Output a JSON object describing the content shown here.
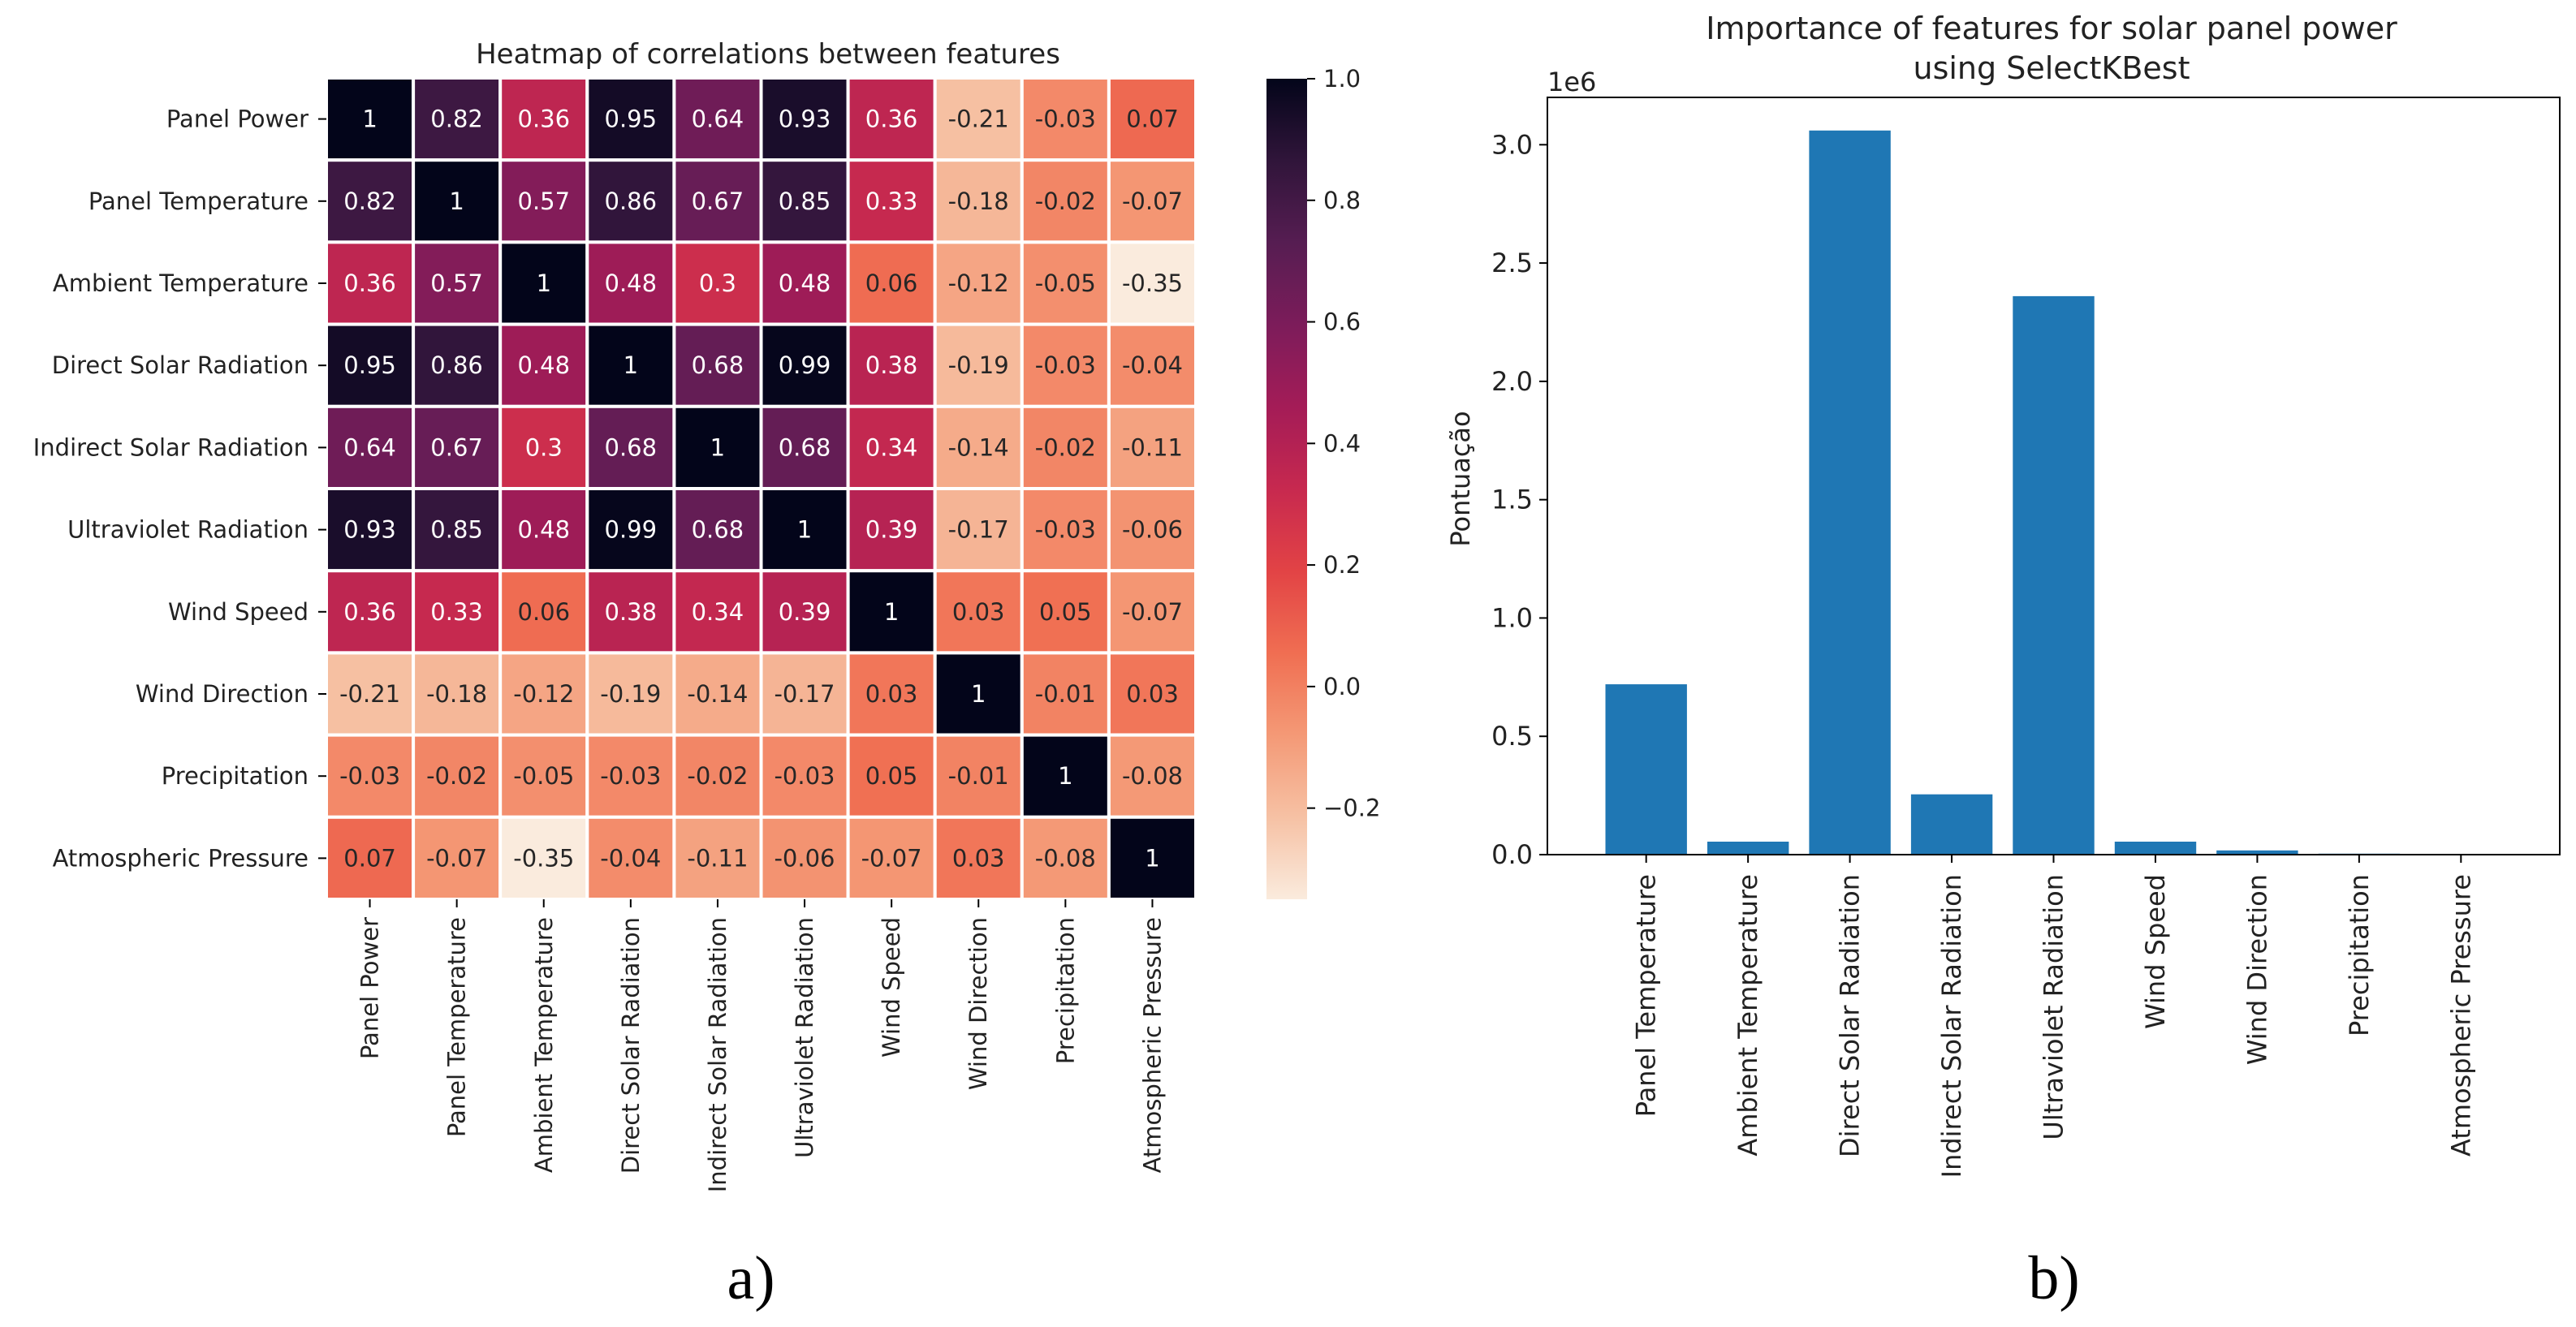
{
  "panel_labels": [
    "a)",
    "b)"
  ],
  "chart_data": [
    {
      "type": "heatmap",
      "title": "Heatmap of correlations between features",
      "labels": [
        "Panel Power",
        "Panel Temperature",
        "Ambient Temperature",
        "Direct Solar Radiation",
        "Indirect Solar Radiation",
        "Ultraviolet Radiation",
        "Wind Speed",
        "Wind Direction",
        "Precipitation",
        "Atmospheric Pressure"
      ],
      "values": [
        [
          1,
          0.82,
          0.36,
          0.95,
          0.64,
          0.93,
          0.36,
          -0.21,
          -0.03,
          0.07
        ],
        [
          0.82,
          1,
          0.57,
          0.86,
          0.67,
          0.85,
          0.33,
          -0.18,
          -0.02,
          -0.07
        ],
        [
          0.36,
          0.57,
          1,
          0.48,
          0.3,
          0.48,
          0.06,
          -0.12,
          -0.05,
          -0.35
        ],
        [
          0.95,
          0.86,
          0.48,
          1,
          0.68,
          0.99,
          0.38,
          -0.19,
          -0.03,
          -0.04
        ],
        [
          0.64,
          0.67,
          0.3,
          0.68,
          1,
          0.68,
          0.34,
          -0.14,
          -0.02,
          -0.11
        ],
        [
          0.93,
          0.85,
          0.48,
          0.99,
          0.68,
          1,
          0.39,
          -0.17,
          -0.03,
          -0.06
        ],
        [
          0.36,
          0.33,
          0.06,
          0.38,
          0.34,
          0.39,
          1,
          0.03,
          0.05,
          -0.07
        ],
        [
          -0.21,
          -0.18,
          -0.12,
          -0.19,
          -0.14,
          -0.17,
          0.03,
          1,
          -0.01,
          0.03
        ],
        [
          -0.03,
          -0.02,
          -0.05,
          -0.03,
          -0.02,
          -0.03,
          0.05,
          -0.01,
          1,
          -0.08
        ],
        [
          0.07,
          -0.07,
          -0.35,
          -0.04,
          -0.11,
          -0.06,
          -0.07,
          0.03,
          -0.08,
          1
        ]
      ],
      "colorbar": {
        "range": [
          -0.35,
          1.0
        ],
        "ticks": [
          -0.2,
          0.0,
          0.2,
          0.4,
          0.6,
          0.8,
          1.0
        ],
        "tick_labels": [
          "−0.2",
          "0.0",
          "0.2",
          "0.4",
          "0.6",
          "0.8",
          "1.0"
        ]
      },
      "colormap": "rocket_r"
    },
    {
      "type": "bar",
      "title": [
        "Importance of features for solar panel power",
        "using SelectKBest"
      ],
      "categories": [
        "Panel Temperature",
        "Ambient Temperature",
        "Direct Solar Radiation",
        "Indirect Solar Radiation",
        "Ultraviolet Radiation",
        "Wind Speed",
        "Wind Direction",
        "Precipitation",
        "Atmospheric Pressure"
      ],
      "values": [
        720000,
        55000,
        3060000,
        255000,
        2360000,
        55000,
        18000,
        4000,
        2000
      ],
      "ylabel": "Pontuação",
      "xlabel": "",
      "ylim": [
        0,
        3200000
      ],
      "yticks": [
        0,
        500000,
        1000000,
        1500000,
        2000000,
        2500000,
        3000000
      ],
      "ytick_labels": [
        "0.0",
        "0.5",
        "1.0",
        "1.5",
        "2.0",
        "2.5",
        "3.0"
      ],
      "scale_label": "1e6",
      "bar_color": "#1f77b4",
      "grid": false
    }
  ]
}
